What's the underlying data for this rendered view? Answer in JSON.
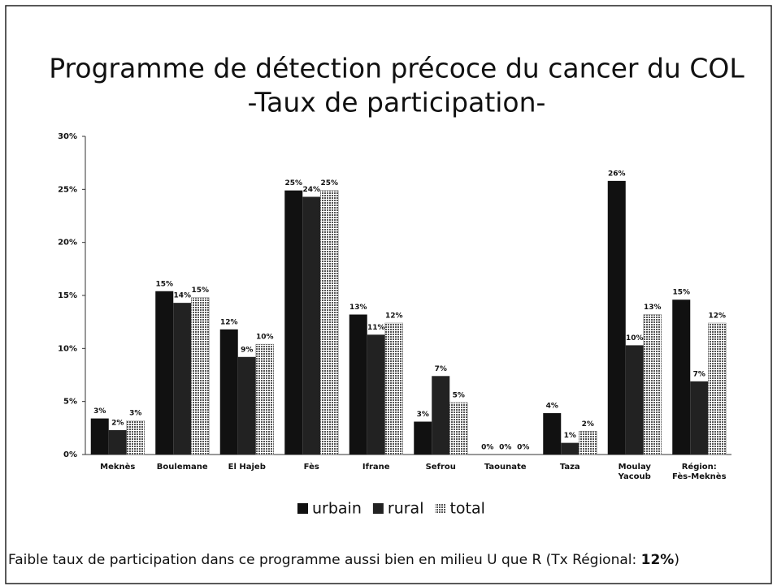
{
  "chart_data": {
    "type": "bar",
    "title": [
      "Programme de détection précoce du cancer du COL",
      "-Taux de participation-"
    ],
    "categories": [
      "Meknès",
      "Boulemane",
      "El Hajeb",
      "Fès",
      "Ifrane",
      "Sefrou",
      "Taounate",
      "Taza",
      "Moulay Yacoub",
      "Région: Fès-Meknès"
    ],
    "series": [
      {
        "name": "urbain",
        "color": "#111111",
        "values": [
          3.4,
          15.4,
          11.8,
          24.9,
          13.2,
          3.1,
          0,
          3.9,
          25.8,
          14.6
        ],
        "value_labels": [
          "3%",
          "15%",
          "12%",
          "25%",
          "13%",
          "3%",
          "0%",
          "4%",
          "26%",
          "15%"
        ]
      },
      {
        "name": "rural",
        "color": "#222222",
        "values": [
          2.3,
          14.3,
          9.2,
          24.3,
          11.3,
          7.4,
          0,
          1.1,
          10.3,
          6.9
        ],
        "value_labels": [
          "2%",
          "14%",
          "9%",
          "24%",
          "11%",
          "7%",
          "0%",
          "1%",
          "10%",
          "7%"
        ]
      },
      {
        "name": "total",
        "color": "#8a8a8a",
        "values": [
          3.2,
          14.8,
          10.4,
          24.9,
          12.4,
          4.9,
          0,
          2.2,
          13.2,
          12.4
        ],
        "value_labels": [
          "3%",
          "15%",
          "10%",
          "25%",
          "12%",
          "5%",
          "0%",
          "2%",
          "13%",
          "12%"
        ]
      }
    ],
    "ylim": [
      0,
      30
    ],
    "yticks": [
      {
        "value": 0,
        "label": "0%"
      },
      {
        "value": 5,
        "label": "5%"
      },
      {
        "value": 10,
        "label": "10%"
      },
      {
        "value": 15,
        "label": "15%"
      },
      {
        "value": 20,
        "label": "20%"
      },
      {
        "value": 25,
        "label": "25%"
      },
      {
        "value": 30,
        "label": "30%"
      }
    ],
    "grid": false,
    "legend": "bottom"
  },
  "footer": {
    "text": "Faible taux de participation dans ce programme aussi bien en milieu U que R (Tx Régional: ",
    "bold": "12%",
    "end": ")"
  }
}
